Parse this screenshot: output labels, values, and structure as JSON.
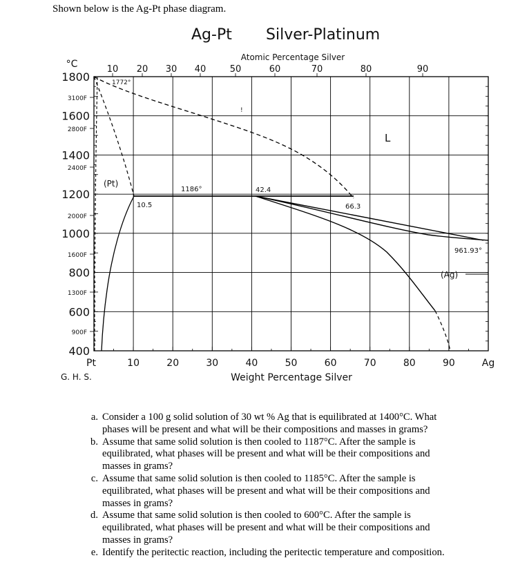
{
  "intro": "Shown below is the Ag-Pt phase diagram.",
  "diagram": {
    "title_left": "Ag-Pt",
    "title_right": "Silver-Platinum",
    "top_axis_label": "Atomic Percentage Silver",
    "top_ticks": [
      "10",
      "20",
      "30",
      "40",
      "50",
      "60",
      "70",
      "80",
      "90"
    ],
    "bottom_axis_label": "Weight Percentage Silver",
    "bottom_ticks": [
      "Pt",
      "10",
      "20",
      "30",
      "40",
      "50",
      "60",
      "70",
      "80",
      "90",
      "Ag"
    ],
    "celsius_unit": "°C",
    "celsius_ticks": [
      "1800",
      "1600",
      "1400",
      "1200",
      "1000",
      "800",
      "600",
      "400"
    ],
    "fahrenheit_ticks": [
      "3100F",
      "2800F",
      "2400F",
      "2000F",
      "1600F",
      "1300F",
      "900F"
    ],
    "credit": "G. H. S.",
    "annotations": {
      "pt_melting": "1772°",
      "pt_phase": "(Pt)",
      "peritectic_temp": "1186°",
      "solvus_point": "10.5",
      "solidus_point": "42.4",
      "liquidus_point": "66.3",
      "liquid": "L",
      "ag_melting": "961.93°",
      "ag_phase": "(Ag)",
      "small_mark": "!"
    }
  },
  "questions": [
    {
      "label": "a.",
      "lines": [
        "Consider a 100 g solid solution of 30 wt % Ag that is equilibrated at 1400°C. What",
        "phases will be present and what will be their compositions and masses in grams?"
      ]
    },
    {
      "label": "b.",
      "lines": [
        "Assume that same solid solution is then cooled to 1187°C. After the sample is",
        "equilibrated, what phases will be present and what will be their compositions and",
        "masses in grams?"
      ]
    },
    {
      "label": "c.",
      "lines": [
        "Assume that same solid solution is then cooled to 1185°C. After the sample is",
        "equilibrated, what phases will be present and what will be their compositions and",
        "masses in grams?"
      ]
    },
    {
      "label": "d.",
      "lines": [
        "Assume that same solid solution is then cooled to 600°C. After the sample is",
        "equilibrated, what phases will be present and what will be their compositions and",
        "masses in grams?"
      ]
    },
    {
      "label": "e.",
      "lines": [
        "Identify the peritectic reaction, including the peritectic temperature and composition."
      ]
    }
  ]
}
